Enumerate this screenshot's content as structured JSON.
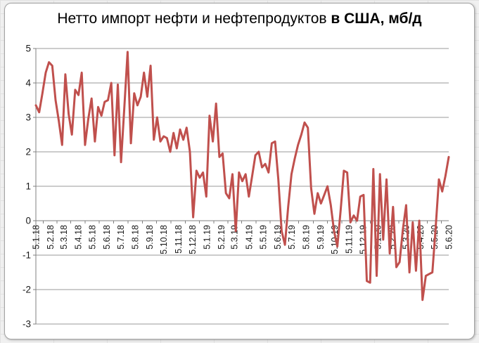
{
  "chart": {
    "title_regular": "Нетто импорт нефти и нефтепродуктов ",
    "title_bold": "в США, мб/д",
    "colors": {
      "line": "#C0504D",
      "gridline": "#9a9a9a",
      "axis": "#808080",
      "tick_label": "#1a1a1a",
      "chart_background": "#FFFFFF",
      "chart_border": "#A3A3A3",
      "sheet_background": "#F0F0F0"
    }
  },
  "chart_data": {
    "type": "line",
    "title": "Нетто импорт нефти и нефтепродуктов в США, мб/д",
    "xlabel": "",
    "ylabel": "",
    "ylim": [
      -3,
      5
    ],
    "y_ticks": [
      5,
      4,
      3,
      2,
      1,
      0,
      -1,
      -2,
      -3
    ],
    "grid": true,
    "legend": "none",
    "x_labels": [
      "5.1.18",
      "5.2.18",
      "5.3.18",
      "5.4.18",
      "5.5.18",
      "5.6.18",
      "5.7.18",
      "5.8.18",
      "5.9.18",
      "5.10.18",
      "5.11.18",
      "5.12.18",
      "5.1.19",
      "5.2.19",
      "5.3.19",
      "5.4.19",
      "5.5.19",
      "5.6.19",
      "5.7.19",
      "5.8.19",
      "5.9.19",
      "5.10.19",
      "5.11.19",
      "5.12.19",
      "5.1.20",
      "5.2.20",
      "5.3.20",
      "5.4.20",
      "5.5.20",
      "5.6.20"
    ],
    "x_label_days": [
      0,
      31,
      59,
      90,
      120,
      151,
      181,
      212,
      243,
      273,
      304,
      334,
      365,
      396,
      424,
      455,
      485,
      516,
      546,
      577,
      608,
      638,
      669,
      699,
      730,
      761,
      790,
      821,
      851,
      882
    ],
    "x_total_days": 882,
    "series": [
      {
        "name": "Нетто импорт нефти и нефтепродуктов в США, мб/д",
        "color": "#C0504D",
        "weekly_values": [
          3.35,
          3.15,
          3.7,
          4.3,
          4.6,
          4.5,
          3.5,
          2.9,
          2.2,
          4.25,
          3.1,
          2.5,
          3.8,
          3.65,
          4.3,
          2.2,
          2.95,
          3.55,
          2.3,
          3.3,
          3.05,
          3.45,
          3.5,
          4.0,
          1.9,
          3.95,
          1.7,
          3.3,
          4.9,
          2.25,
          3.7,
          3.35,
          3.6,
          4.3,
          3.6,
          4.5,
          2.35,
          3.0,
          2.3,
          2.45,
          2.4,
          2.0,
          2.55,
          2.1,
          2.65,
          2.35,
          2.7,
          2.0,
          0.1,
          1.45,
          1.25,
          1.4,
          0.7,
          3.05,
          2.3,
          3.4,
          1.85,
          1.95,
          0.8,
          0.65,
          1.35,
          -0.3,
          1.4,
          1.15,
          1.35,
          0.7,
          1.3,
          1.9,
          2.0,
          1.55,
          1.65,
          1.4,
          2.25,
          2.3,
          1.2,
          -0.3,
          -0.7,
          0.4,
          1.35,
          1.8,
          2.2,
          2.5,
          2.85,
          2.7,
          0.95,
          0.2,
          0.8,
          0.5,
          0.75,
          1.0,
          0.45,
          -0.3,
          -0.75,
          0.3,
          1.45,
          1.4,
          -0.05,
          0.15,
          0.0,
          0.7,
          0.75,
          -1.75,
          -1.8,
          1.5,
          -1.6,
          1.35,
          -0.55,
          1.2,
          -0.95,
          0.4,
          -1.35,
          -1.2,
          -0.25,
          0.45,
          -1.5,
          -0.05,
          -1.45,
          0.0,
          -2.3,
          -1.6,
          -1.55,
          -1.5,
          -0.2,
          1.2,
          0.85,
          1.3,
          1.85
        ]
      }
    ]
  }
}
